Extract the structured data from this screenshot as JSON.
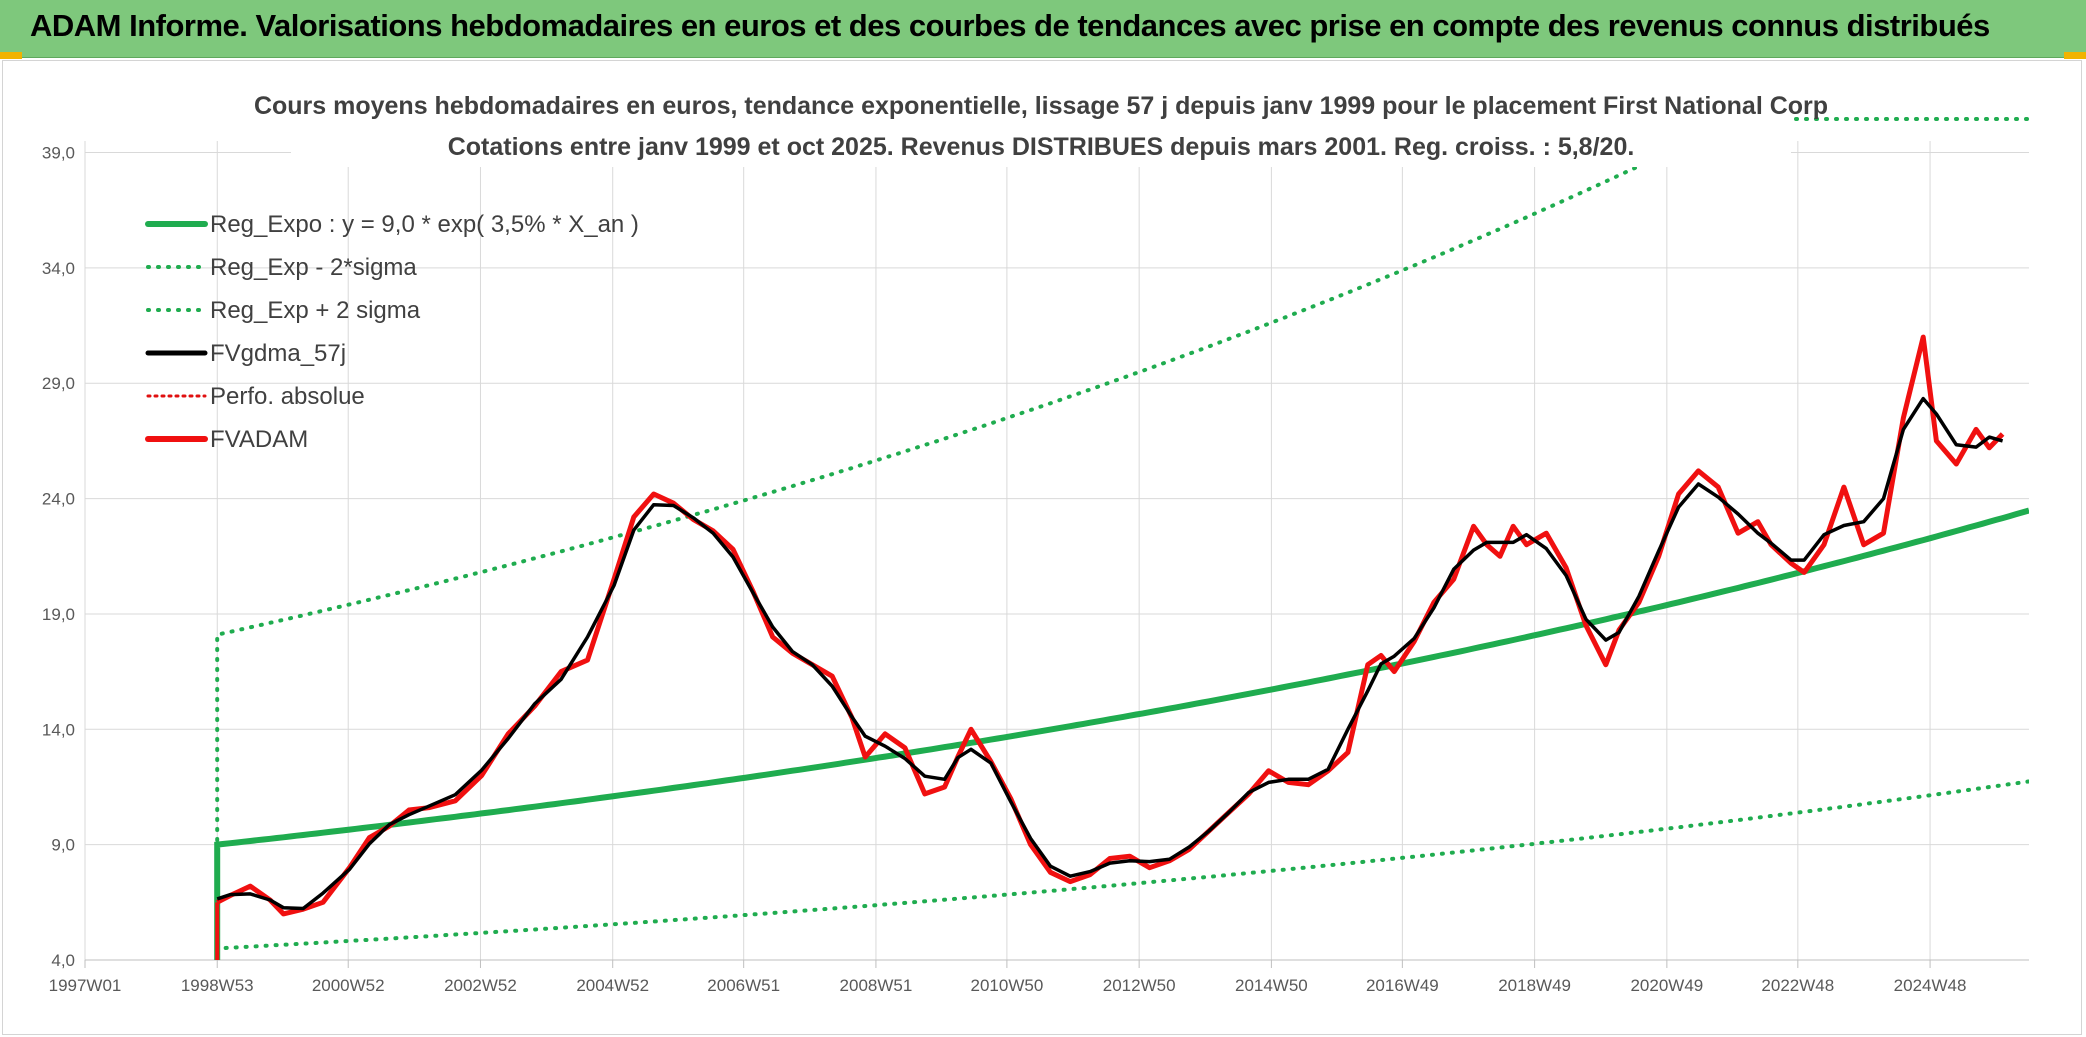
{
  "header": {
    "title": "ADAM Informe. Valorisations hebdomadaires en euros et des courbes de tendances avec prise en compte des revenus connus distribués"
  },
  "colors": {
    "banner": "#7ec87c",
    "reg_expo": "#1fac4f",
    "fvgdma": "#000000",
    "fvadam": "#f01010",
    "perfo": "#e01010",
    "gridline": "#d9d9d9"
  },
  "chart_data": {
    "type": "line",
    "title": "Cours moyens hebdomadaires en euros, tendance exponentielle, lissage 57 j depuis janv 1999 pour le placement First National Corp",
    "subtitle": "Cotations entre janv 1999 et oct 2025. Revenus DISTRIBUES depuis mars 2001. Reg. croiss. : 5,8/20.",
    "xlabel": "",
    "ylabel": "",
    "x_ticks": [
      "1997W01",
      "1998W53",
      "2000W52",
      "2002W52",
      "2004W52",
      "2006W51",
      "2008W51",
      "2010W50",
      "2012W50",
      "2014W50",
      "2016W49",
      "2018W49",
      "2020W49",
      "2022W48",
      "2024W48"
    ],
    "xlim": [
      1997.0,
      2026.4
    ],
    "y_ticks": [
      "4,0",
      "9,0",
      "14,0",
      "19,0",
      "24,0",
      "29,0",
      "34,0",
      "39,0"
    ],
    "ylim": [
      4,
      39.5
    ],
    "grid": true,
    "legend_position": "top-left",
    "legend": [
      "Reg_Expo : y = 9,0 * exp( 3,5% *  X_an )",
      "Reg_Exp - 2*sigma",
      "Reg_Exp + 2 sigma",
      "FVgdma_57j",
      "Perfo. absolue",
      "FVADAM"
    ],
    "regression": {
      "start_x": 1999.0,
      "end_x": 2026.4,
      "base": 9.0,
      "rate": 0.035,
      "lower_start": 4.5,
      "upper_start": 18.1,
      "drop_to": 4.0
    },
    "series": [
      {
        "name": "FVADAM",
        "x": [
          1999.0,
          1999.2,
          1999.5,
          1999.8,
          2000.0,
          2000.3,
          2000.6,
          2001.0,
          2001.3,
          2001.6,
          2001.9,
          2002.2,
          2002.6,
          2003.0,
          2003.4,
          2003.8,
          2004.2,
          2004.6,
          2005.0,
          2005.3,
          2005.6,
          2005.9,
          2006.2,
          2006.5,
          2006.8,
          2007.1,
          2007.4,
          2007.7,
          2008.0,
          2008.3,
          2008.6,
          2008.8,
          2009.1,
          2009.4,
          2009.7,
          2010.0,
          2010.2,
          2010.4,
          2010.7,
          2011.0,
          2011.3,
          2011.6,
          2011.9,
          2012.2,
          2012.5,
          2012.8,
          2013.1,
          2013.4,
          2013.7,
          2014.0,
          2014.3,
          2014.6,
          2014.9,
          2015.2,
          2015.5,
          2015.8,
          2016.1,
          2016.4,
          2016.6,
          2016.8,
          2017.1,
          2017.4,
          2017.7,
          2018.0,
          2018.2,
          2018.4,
          2018.6,
          2018.8,
          2019.1,
          2019.4,
          2019.7,
          2020.0,
          2020.2,
          2020.5,
          2020.8,
          2021.1,
          2021.4,
          2021.7,
          2022.0,
          2022.3,
          2022.5,
          2022.8,
          2023.0,
          2023.3,
          2023.6,
          2023.9,
          2024.2,
          2024.5,
          2024.8,
          2025.0,
          2025.3,
          2025.6,
          2025.8,
          2026.0
        ],
        "values": [
          6.5,
          6.8,
          7.2,
          6.6,
          6.0,
          6.2,
          6.5,
          8.0,
          9.3,
          9.8,
          10.5,
          10.6,
          10.9,
          12.0,
          13.8,
          15.0,
          16.5,
          17.0,
          20.5,
          23.2,
          24.2,
          23.8,
          23.1,
          22.6,
          21.8,
          20.0,
          18.0,
          17.3,
          16.8,
          16.3,
          14.5,
          12.8,
          13.8,
          13.2,
          11.2,
          11.5,
          12.8,
          14.0,
          12.6,
          11.0,
          9.0,
          7.8,
          7.4,
          7.7,
          8.4,
          8.5,
          8.0,
          8.3,
          8.8,
          9.6,
          10.4,
          11.2,
          12.2,
          11.7,
          11.6,
          12.2,
          13.0,
          16.8,
          17.2,
          16.5,
          17.8,
          19.5,
          20.5,
          22.8,
          22.0,
          21.5,
          22.8,
          22.0,
          22.5,
          21.0,
          18.5,
          16.8,
          18.3,
          19.5,
          21.5,
          24.2,
          25.2,
          24.5,
          22.5,
          23.0,
          22.0,
          21.2,
          20.8,
          22.0,
          24.5,
          22.0,
          22.5,
          27.5,
          31.0,
          26.5,
          25.5,
          27.0,
          26.2,
          26.8
        ]
      }
    ]
  }
}
